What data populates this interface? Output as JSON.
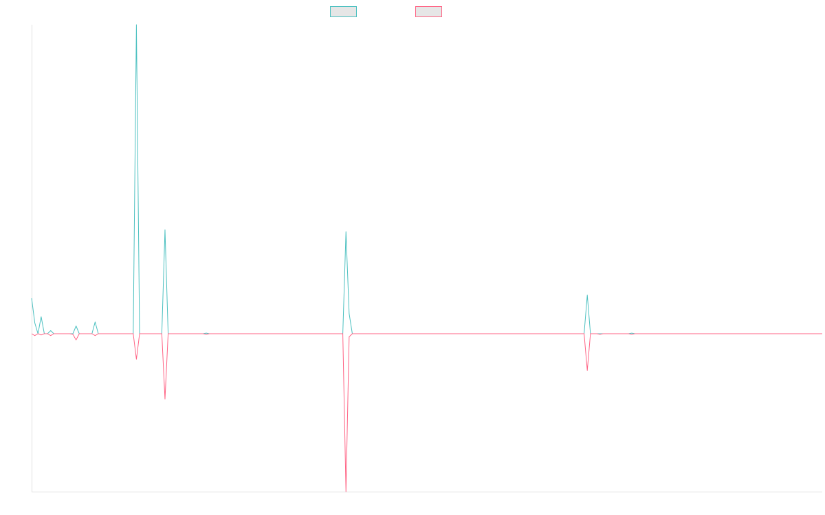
{
  "chart_data": {
    "type": "line",
    "title": "",
    "xlabel": "",
    "ylabel": "",
    "x_count": 250,
    "ylim": [
      -1.0,
      1.0
    ],
    "grid": false,
    "legend_placement": "top-center",
    "series": [
      {
        "name": "",
        "color": "#4bc0c0",
        "direction": "up",
        "peaks": [
          [
            0,
            0.115
          ],
          [
            1,
            0.035
          ],
          [
            3,
            0.055
          ],
          [
            6,
            0.01
          ],
          [
            14,
            0.025
          ],
          [
            20,
            0.038
          ],
          [
            33,
            1.0
          ],
          [
            42,
            0.336
          ],
          [
            55,
            0.002
          ],
          [
            99,
            0.33
          ],
          [
            100,
            0.065
          ],
          [
            175,
            0.125
          ],
          [
            189,
            0.002
          ]
        ]
      },
      {
        "name": "",
        "color": "#ff6384",
        "direction": "down",
        "peaks": [
          [
            1,
            0.006
          ],
          [
            3,
            0.004
          ],
          [
            6,
            0.006
          ],
          [
            13,
            0.002
          ],
          [
            14,
            0.02
          ],
          [
            20,
            0.006
          ],
          [
            33,
            0.082
          ],
          [
            42,
            0.21
          ],
          [
            55,
            0.002
          ],
          [
            99,
            0.508
          ],
          [
            100,
            0.01
          ],
          [
            175,
            0.118
          ],
          [
            179,
            0.002
          ],
          [
            189,
            0.002
          ]
        ]
      }
    ]
  }
}
